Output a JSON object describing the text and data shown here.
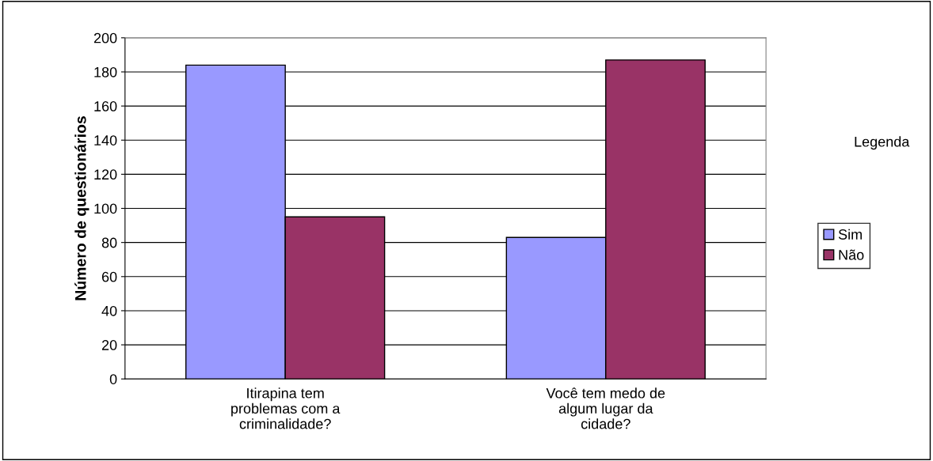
{
  "chart_data": {
    "type": "bar",
    "ylabel": "Número de questionários",
    "legend_title": "Legenda",
    "categories": [
      "Itirapina tem problemas com a criminalidade?",
      "Você tem medo de algum lugar da cidade?"
    ],
    "series": [
      {
        "name": "Sim",
        "color": "#9999ff",
        "values": [
          184,
          83
        ]
      },
      {
        "name": "Não",
        "color": "#993366",
        "values": [
          95,
          187
        ]
      }
    ],
    "ylim": [
      0,
      200
    ],
    "yticks": [
      0,
      20,
      40,
      60,
      80,
      100,
      120,
      140,
      160,
      180,
      200
    ],
    "grid": "y",
    "legend": "right"
  }
}
